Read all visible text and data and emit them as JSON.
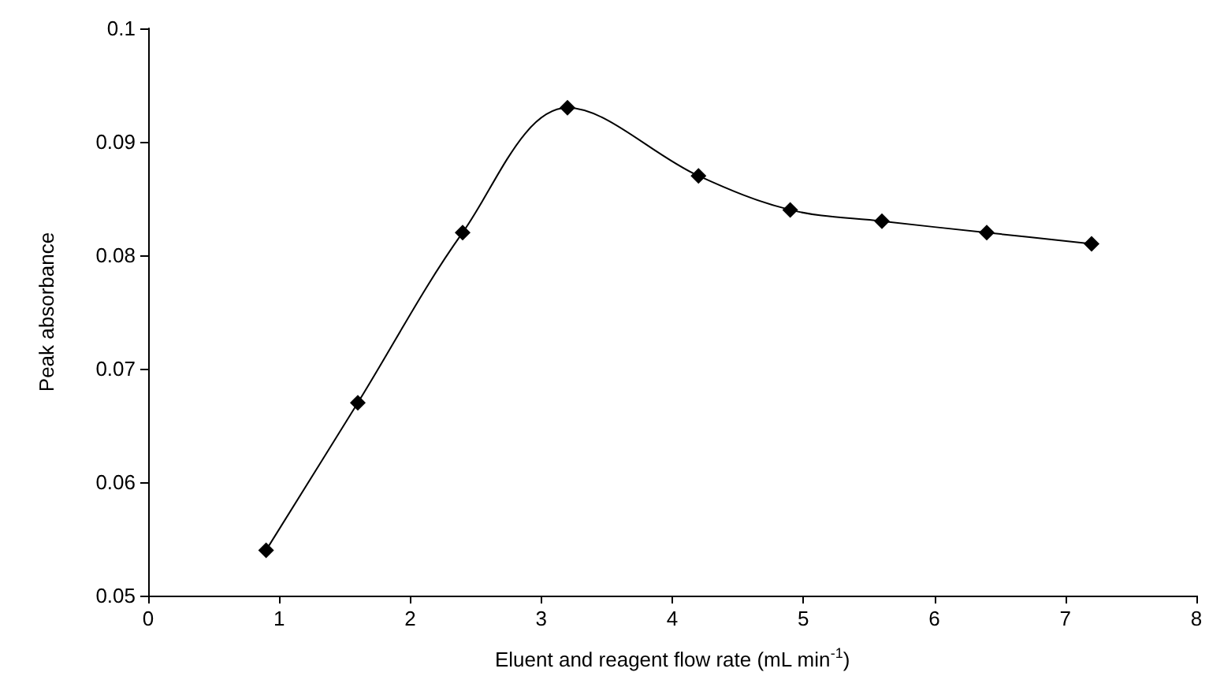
{
  "chart_data": {
    "type": "line",
    "xlabel": "Eluent and reagent flow rate (mL min$^{-1}$)",
    "ylabel": "Peak absorbance",
    "x": [
      0.9,
      1.6,
      2.4,
      3.2,
      4.2,
      4.9,
      5.6,
      6.4,
      7.2
    ],
    "series": [
      {
        "color": "#000000",
        "values": [
          0.054,
          0.067,
          0.082,
          0.093,
          0.087,
          0.084,
          0.083,
          0.082,
          0.081
        ]
      }
    ],
    "xlim": [
      0,
      8
    ],
    "xticks": [
      0,
      1,
      2,
      3,
      4,
      5,
      6,
      7,
      8
    ],
    "ylim": [
      0.05,
      0.1
    ],
    "yticks": [
      0.05,
      0.06,
      0.07,
      0.08,
      0.09,
      0.1
    ],
    "grid": false,
    "marker": "diamond",
    "line_style": "solid"
  }
}
